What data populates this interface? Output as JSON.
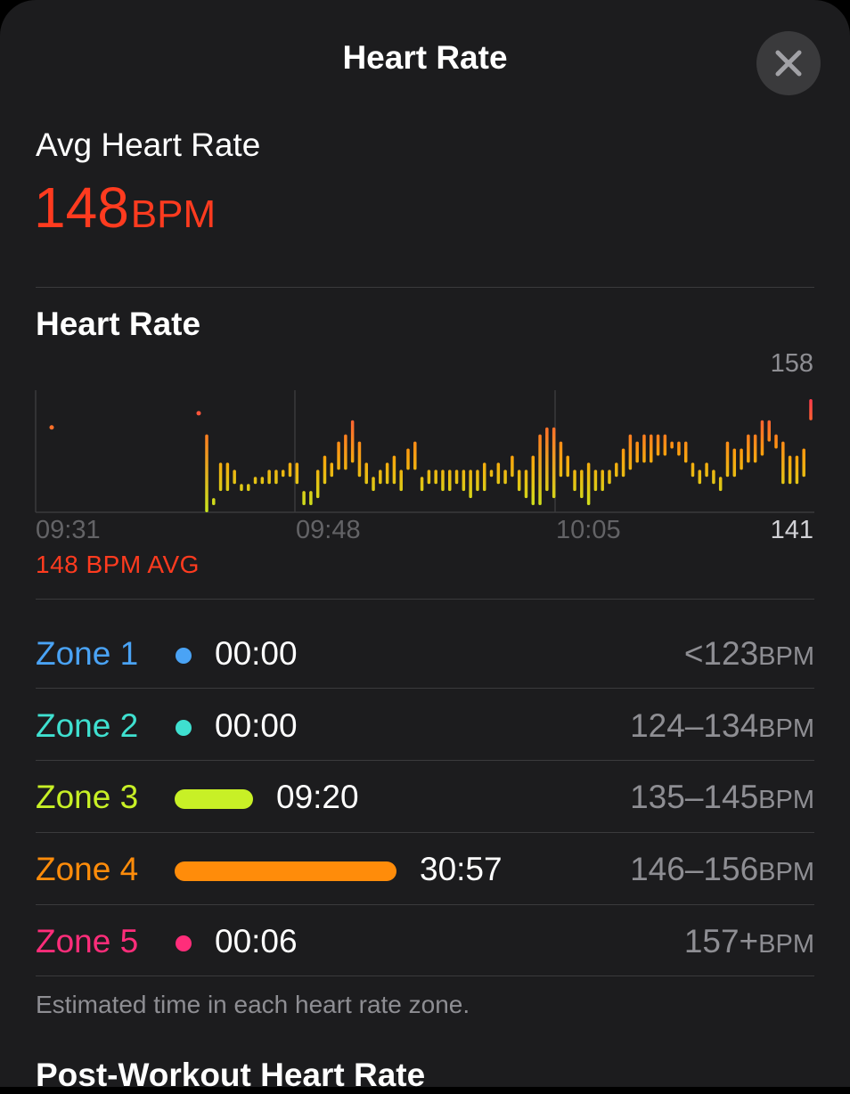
{
  "sheet": {
    "title": "Heart Rate",
    "close_icon": "close-icon"
  },
  "summary": {
    "label": "Avg Heart Rate",
    "value": "148",
    "unit": "BPM"
  },
  "chart": {
    "title": "Heart Rate",
    "max_label": "158",
    "min_label": "141",
    "ticks": [
      "09:31",
      "09:48",
      "10:05"
    ],
    "avg_caption": "148 BPM AVG"
  },
  "chart_data": {
    "type": "bar",
    "title": "Heart Rate",
    "x_axis_ticks": [
      "09:31",
      "09:48",
      "10:05"
    ],
    "ylim": [
      141,
      158
    ],
    "y_labels": [
      "158",
      "141"
    ],
    "annotation": "148 BPM AVG",
    "color_scale": [
      "#c8e61e",
      "#ff9f0a",
      "#ff2d55"
    ],
    "series": [
      {
        "values": [
          [
            153,
            153
          ],
          [
            155,
            155
          ],
          [
            152,
            141
          ],
          [
            143,
            142
          ],
          [
            148,
            144
          ],
          [
            148,
            144
          ],
          [
            147,
            145
          ],
          [
            145,
            144
          ],
          [
            145,
            144
          ],
          [
            146,
            145
          ],
          [
            146,
            145
          ],
          [
            147,
            145
          ],
          [
            147,
            145
          ],
          [
            147,
            146
          ],
          [
            148,
            146
          ],
          [
            148,
            145
          ],
          [
            144,
            142
          ],
          [
            144,
            142
          ],
          [
            147,
            143
          ],
          [
            149,
            145
          ],
          [
            148,
            146
          ],
          [
            151,
            147
          ],
          [
            152,
            147
          ],
          [
            154,
            148
          ],
          [
            151,
            146
          ],
          [
            148,
            145
          ],
          [
            146,
            144
          ],
          [
            147,
            145
          ],
          [
            148,
            145
          ],
          [
            149,
            145
          ],
          [
            147,
            144
          ],
          [
            150,
            147
          ],
          [
            151,
            147
          ],
          [
            146,
            144
          ],
          [
            147,
            145
          ],
          [
            147,
            145
          ],
          [
            147,
            144
          ],
          [
            147,
            144
          ],
          [
            147,
            145
          ],
          [
            147,
            144
          ],
          [
            147,
            143
          ],
          [
            147,
            144
          ],
          [
            148,
            144
          ],
          [
            147,
            146
          ],
          [
            148,
            145
          ],
          [
            147,
            145
          ],
          [
            149,
            146
          ],
          [
            147,
            144
          ],
          [
            147,
            143
          ],
          [
            149,
            142
          ],
          [
            152,
            142
          ],
          [
            153,
            144
          ],
          [
            153,
            143
          ],
          [
            151,
            146
          ],
          [
            149,
            146
          ],
          [
            147,
            144
          ],
          [
            147,
            143
          ],
          [
            148,
            142
          ],
          [
            147,
            144
          ],
          [
            147,
            144
          ],
          [
            147,
            145
          ],
          [
            148,
            146
          ],
          [
            150,
            146
          ],
          [
            152,
            147
          ],
          [
            151,
            148
          ],
          [
            152,
            148
          ],
          [
            152,
            148
          ],
          [
            152,
            149
          ],
          [
            152,
            149
          ],
          [
            151,
            150
          ],
          [
            151,
            149
          ],
          [
            151,
            148
          ],
          [
            148,
            146
          ],
          [
            147,
            145
          ],
          [
            148,
            146
          ],
          [
            147,
            145
          ],
          [
            146,
            144
          ],
          [
            151,
            146
          ],
          [
            150,
            146
          ],
          [
            150,
            147
          ],
          [
            152,
            148
          ],
          [
            152,
            148
          ],
          [
            154,
            149
          ],
          [
            154,
            151
          ],
          [
            152,
            150
          ],
          [
            151,
            145
          ],
          [
            149,
            145
          ],
          [
            149,
            145
          ],
          [
            150,
            146
          ],
          [
            157,
            154
          ]
        ]
      }
    ]
  },
  "zones": [
    {
      "name": "Zone 1",
      "time": "00:00",
      "range": "<123",
      "unit": "BPM",
      "color": "#4aa3f5"
    },
    {
      "name": "Zone 2",
      "time": "00:00",
      "range": "124–134",
      "unit": "BPM",
      "color": "#3fe0d0"
    },
    {
      "name": "Zone 3",
      "time": "09:20",
      "range": "135–145",
      "unit": "BPM",
      "color": "#c8f026"
    },
    {
      "name": "Zone 4",
      "time": "30:57",
      "range": "146–156",
      "unit": "BPM",
      "color": "#ff8c0a"
    },
    {
      "name": "Zone 5",
      "time": "00:06",
      "range": "157+",
      "unit": "BPM",
      "color": "#ff2d7a"
    }
  ],
  "footnote": "Estimated time in each heart rate zone.",
  "next_section_title": "Post-Workout Heart Rate"
}
